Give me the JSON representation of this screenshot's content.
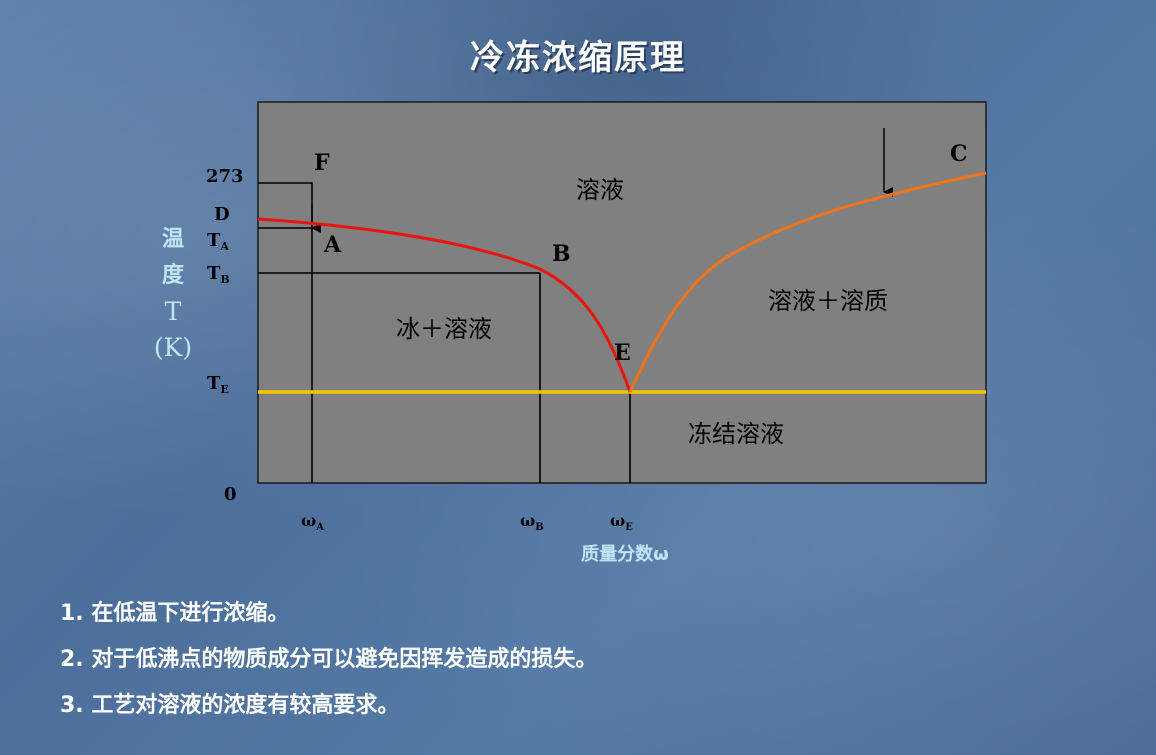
{
  "title": "冷冻浓缩原理",
  "y_axis": {
    "label_chars": [
      "温",
      "度"
    ],
    "unit_line1": "T",
    "unit_line2": "(K)"
  },
  "x_axis": {
    "title": "质量分数ω"
  },
  "y_ticks": {
    "t273": "273",
    "D": "D",
    "TA": {
      "main": "T",
      "sub": "A"
    },
    "TB": {
      "main": "T",
      "sub": "B"
    },
    "TE": {
      "main": "T",
      "sub": "E"
    },
    "zero": "0"
  },
  "x_ticks": {
    "wA": {
      "main": "ω",
      "sub": "A"
    },
    "wB": {
      "main": "ω",
      "sub": "B"
    },
    "wE": {
      "main": "ω",
      "sub": "E"
    }
  },
  "points": {
    "F": "F",
    "A": "A",
    "B": "B",
    "E": "E",
    "C": "C"
  },
  "regions": {
    "solution": "溶液",
    "ice_solution": "冰＋溶液",
    "solution_solute": "溶液＋溶质",
    "frozen_solution": "冻结溶液"
  },
  "colors": {
    "plot_bg": "#808080",
    "ice_curve": "#e8140e",
    "solubility_curve": "#f27318",
    "eutectic_line": "#f5c400",
    "guide_lines": "#000000"
  },
  "notes": [
    "1. 在低温下进行浓缩。",
    "2. 对于低沸点的物质成分可以避免因挥发造成的损失。",
    "3. 工艺对溶液的浓度有较高要求。"
  ]
}
